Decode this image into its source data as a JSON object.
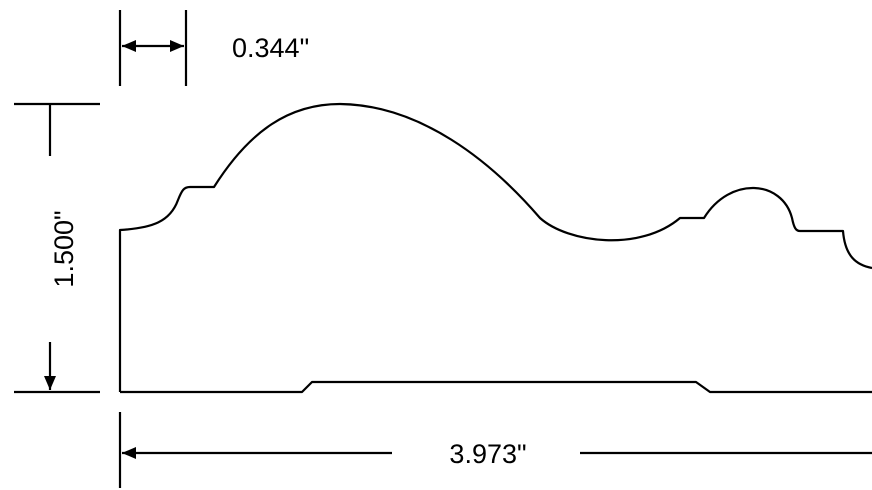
{
  "dimensions": {
    "offset_label": "0.344\"",
    "height_label": "1.500\"",
    "width_label": "3.973\""
  }
}
